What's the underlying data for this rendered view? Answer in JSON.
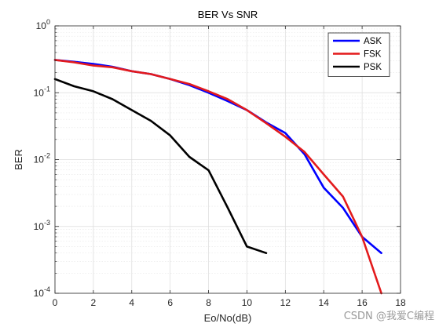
{
  "chart_data": {
    "type": "line",
    "title": "BER Vs SNR",
    "xlabel": "Eo/No(dB)",
    "ylabel": "BER",
    "xlim": [
      0,
      18
    ],
    "ylim": [
      0.0001,
      1
    ],
    "yscale": "log",
    "xticks": [
      0,
      2,
      4,
      6,
      8,
      10,
      12,
      14,
      16,
      18
    ],
    "xtick_labels": [
      "0",
      "2",
      "4",
      "6",
      "8",
      "10",
      "12",
      "14",
      "16",
      "18"
    ],
    "yticks": [
      {
        "value": 1,
        "base": "10",
        "exp": "0"
      },
      {
        "value": 0.1,
        "base": "10",
        "exp": "-1"
      },
      {
        "value": 0.01,
        "base": "10",
        "exp": "-2"
      },
      {
        "value": 0.001,
        "base": "10",
        "exp": "-3"
      },
      {
        "value": 0.0001,
        "base": "10",
        "exp": "-4"
      }
    ],
    "grid": true,
    "legend_position": "top-right",
    "series": [
      {
        "name": "ASK",
        "color": "#0000FF",
        "x": [
          0,
          1,
          2,
          3,
          4,
          5,
          6,
          7,
          8,
          9,
          10,
          11,
          12,
          13,
          14,
          15,
          16,
          17
        ],
        "y": [
          0.31,
          0.29,
          0.27,
          0.245,
          0.21,
          0.19,
          0.16,
          0.13,
          0.1,
          0.075,
          0.055,
          0.036,
          0.025,
          0.012,
          0.0038,
          0.0019,
          0.0007,
          0.0004
        ]
      },
      {
        "name": "FSK",
        "color": "#E31A1C",
        "x": [
          0,
          1,
          2,
          3,
          4,
          5,
          6,
          7,
          8,
          9,
          10,
          11,
          12,
          13,
          14,
          15,
          16,
          17
        ],
        "y": [
          0.31,
          0.285,
          0.255,
          0.24,
          0.21,
          0.19,
          0.16,
          0.135,
          0.105,
          0.08,
          0.055,
          0.035,
          0.022,
          0.013,
          0.006,
          0.0028,
          0.0007,
          0.0001
        ]
      },
      {
        "name": "PSK",
        "color": "#000000",
        "x": [
          0,
          1,
          2,
          3,
          4,
          5,
          6,
          7,
          8,
          9,
          10,
          11
        ],
        "y": [
          0.16,
          0.125,
          0.105,
          0.08,
          0.055,
          0.038,
          0.023,
          0.011,
          0.0069,
          0.0019,
          0.0005,
          0.0004
        ]
      }
    ]
  },
  "watermark": "CSDN @我爱C编程"
}
